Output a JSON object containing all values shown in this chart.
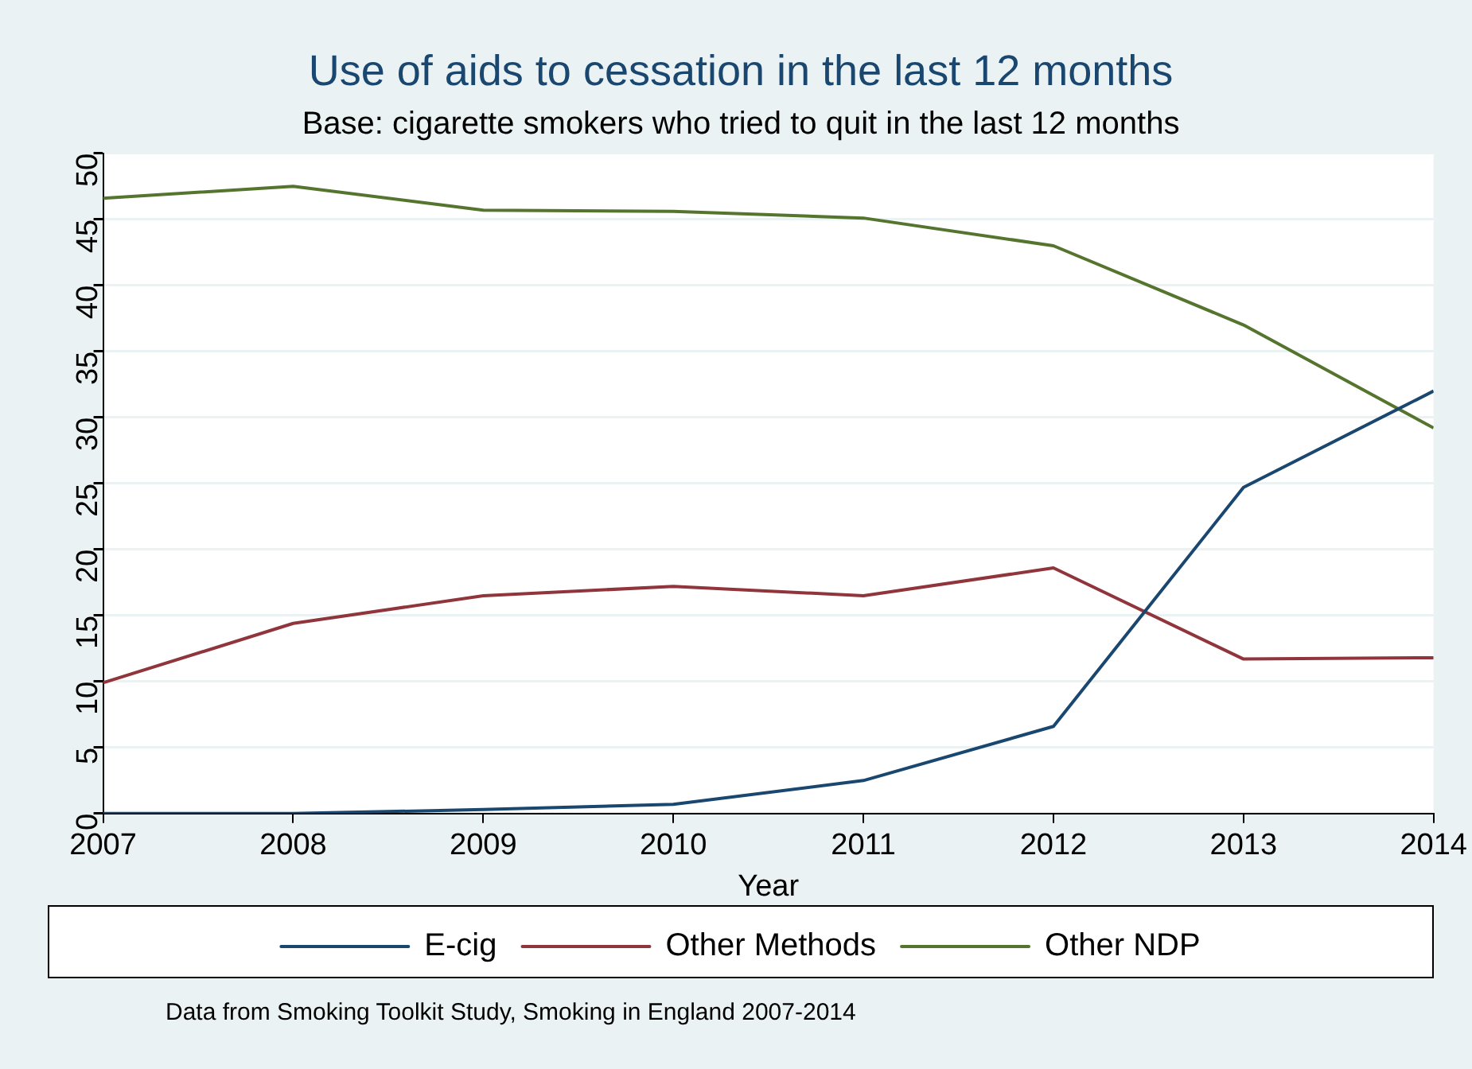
{
  "chart_data": {
    "type": "line",
    "title": "Use of aids to cessation in the last 12 months",
    "subtitle": "Base: cigarette smokers who tried to quit in the last 12 months",
    "xlabel": "Year",
    "x": [
      2007,
      2008,
      2009,
      2010,
      2011,
      2012,
      2013,
      2014
    ],
    "xlim": [
      2007,
      2014
    ],
    "xticks": [
      2007,
      2008,
      2009,
      2010,
      2011,
      2012,
      2013,
      2014
    ],
    "ylim": [
      0,
      50
    ],
    "yticks": [
      0,
      5,
      10,
      15,
      20,
      25,
      30,
      35,
      40,
      45,
      50
    ],
    "series": [
      {
        "name": "E-cig",
        "color": "#1a476f",
        "values": [
          0,
          0,
          0.3,
          0.7,
          2.5,
          6.6,
          24.7,
          32.0
        ]
      },
      {
        "name": "Other Methods",
        "color": "#90353b",
        "values": [
          9.9,
          14.4,
          16.5,
          17.2,
          16.5,
          18.6,
          11.7,
          11.8
        ]
      },
      {
        "name": "Other NDP",
        "color": "#55752f",
        "values": [
          46.6,
          47.5,
          45.7,
          45.6,
          45.1,
          43.0,
          37.0,
          29.2
        ]
      }
    ],
    "grid": "y",
    "legend": "bottom",
    "marker": "none",
    "line_style": "solid",
    "annotations": [
      "Data from Smoking Toolkit Study, Smoking in England 2007-2014"
    ]
  }
}
